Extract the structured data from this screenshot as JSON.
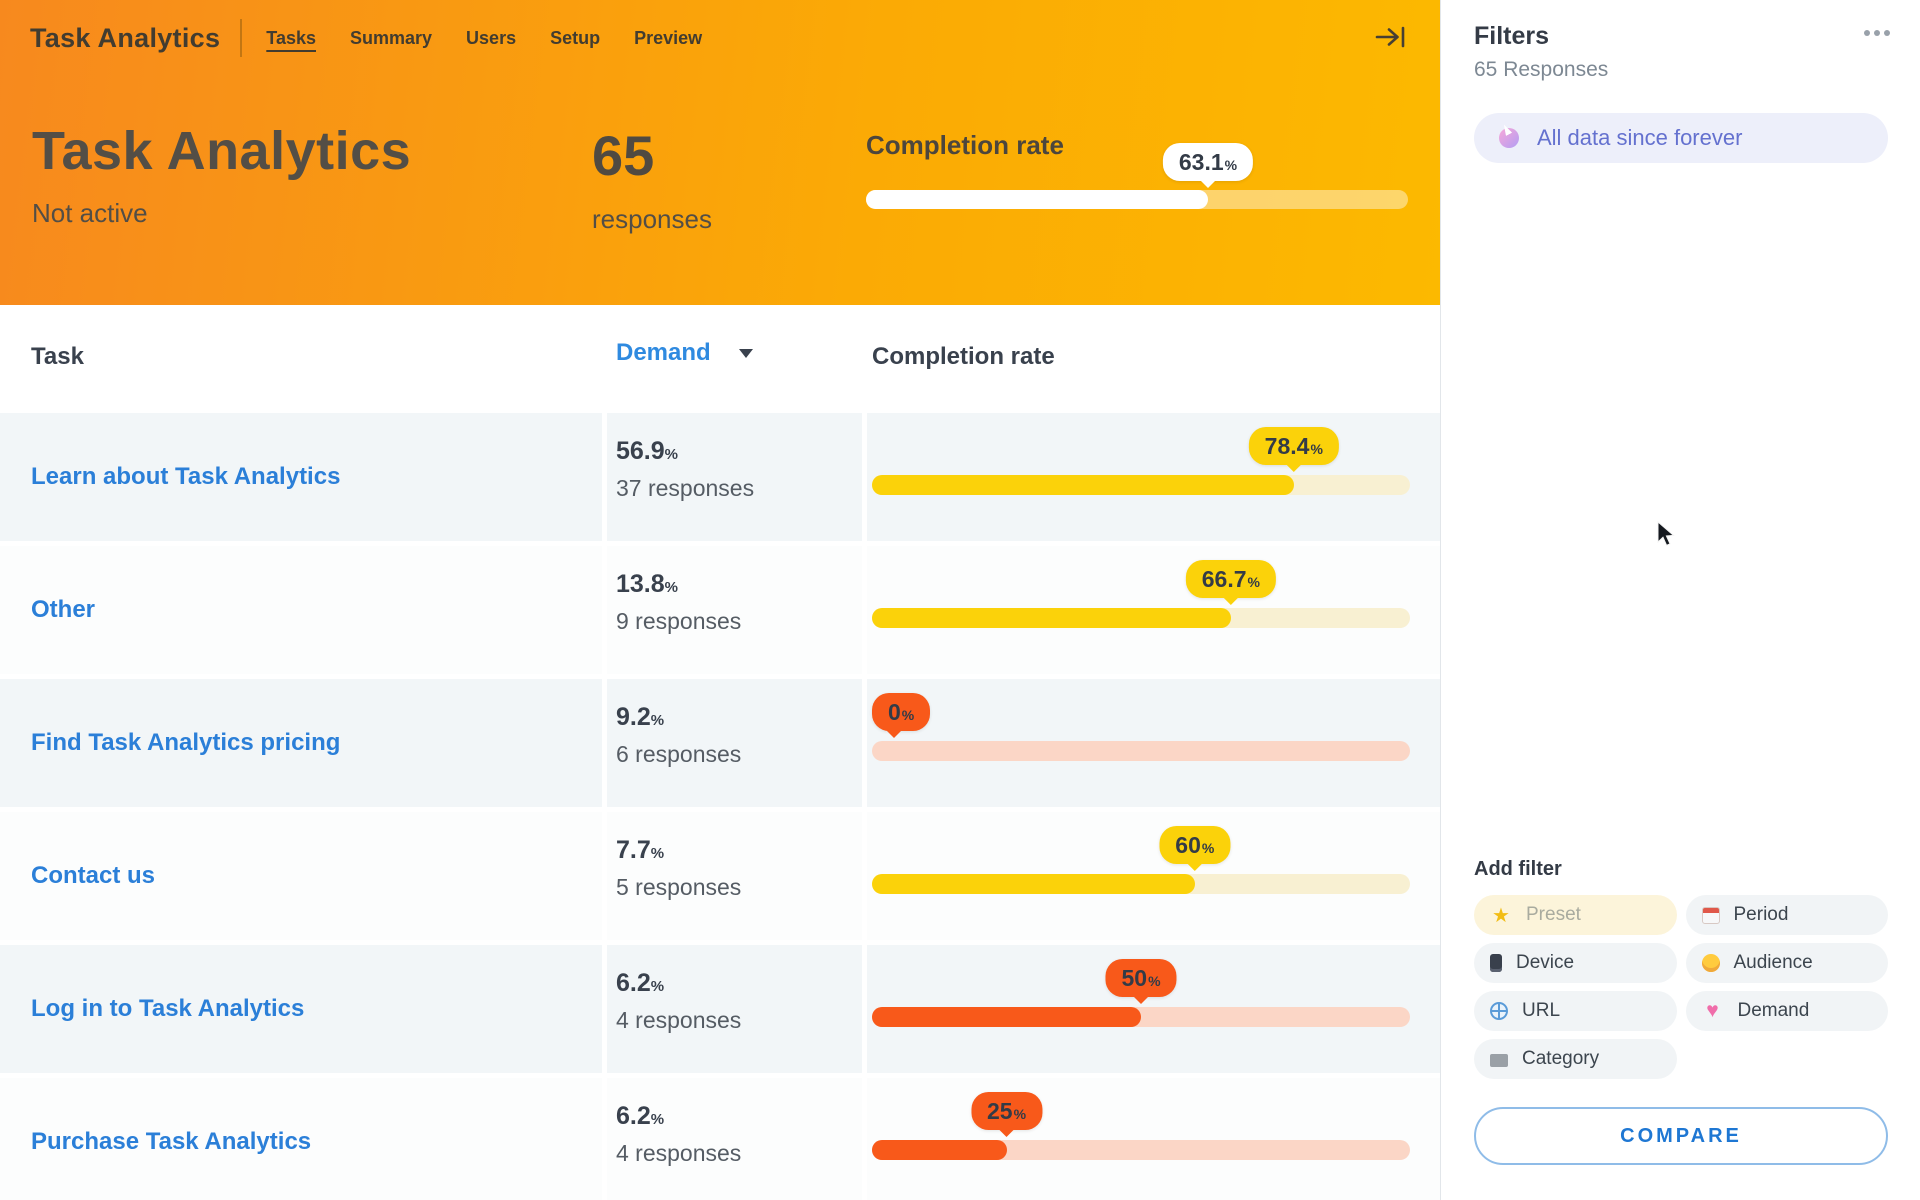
{
  "header": {
    "logo": "Task Analytics",
    "nav": [
      {
        "label": "Tasks",
        "active": true
      },
      {
        "label": "Summary",
        "active": false
      },
      {
        "label": "Users",
        "active": false
      },
      {
        "label": "Setup",
        "active": false
      },
      {
        "label": "Preview",
        "active": false
      }
    ],
    "collapse_icon": "arrow-to-bar"
  },
  "hero": {
    "title": "Task Analytics",
    "status": "Not active",
    "responses_count": "65",
    "responses_label": "responses",
    "completion_label": "Completion rate",
    "completion_value": "63.1",
    "completion_pct": 63.1
  },
  "table": {
    "columns": {
      "task": "Task",
      "demand": "Demand",
      "completion": "Completion rate"
    },
    "rows": [
      {
        "task": "Learn about Task Analytics",
        "demand": "56.9",
        "responses": "37 responses",
        "completion": "78.4",
        "pct": 78.4,
        "color": "yellow"
      },
      {
        "task": "Other",
        "demand": "13.8",
        "responses": "9 responses",
        "completion": "66.7",
        "pct": 66.7,
        "color": "yellow"
      },
      {
        "task": "Find Task Analytics pricing",
        "demand": "9.2",
        "responses": "6 responses",
        "completion": "0",
        "pct": 0,
        "color": "orange"
      },
      {
        "task": "Contact us",
        "demand": "7.7",
        "responses": "5 responses",
        "completion": "60",
        "pct": 60,
        "color": "yellow"
      },
      {
        "task": "Log in to Task Analytics",
        "demand": "6.2",
        "responses": "4 responses",
        "completion": "50",
        "pct": 50,
        "color": "orange"
      },
      {
        "task": "Purchase Task Analytics",
        "demand": "6.2",
        "responses": "4 responses",
        "completion": "25",
        "pct": 25,
        "color": "orange"
      }
    ]
  },
  "sidebar": {
    "title": "Filters",
    "subtitle": "65 Responses",
    "menu_icon": "ellipsis",
    "filter_pill": {
      "icon": "unicorn",
      "label": "All data since forever"
    },
    "add_filter": {
      "title": "Add filter",
      "buttons": [
        {
          "icon": "glowing-star",
          "label": "Preset",
          "style": "preset"
        },
        {
          "icon": "calendar",
          "label": "Period"
        },
        {
          "icon": "mobile-phone",
          "label": "Device"
        },
        {
          "icon": "person",
          "label": "Audience"
        },
        {
          "icon": "globe",
          "label": "URL"
        },
        {
          "icon": "sparkling-heart",
          "label": "Demand"
        },
        {
          "icon": "folder",
          "label": "Category"
        }
      ]
    },
    "compare_label": "COMPARE"
  },
  "colors": {
    "yellow": "#fbd20a",
    "yellow_track": "#f8f0d2",
    "orange": "#f8591a",
    "orange_track": "#fbd6c6",
    "hero_gradient_start": "#f7891e",
    "hero_gradient_end": "#fcb900",
    "link_blue": "#2b7fd8",
    "compare_blue": "#1e77d3"
  }
}
